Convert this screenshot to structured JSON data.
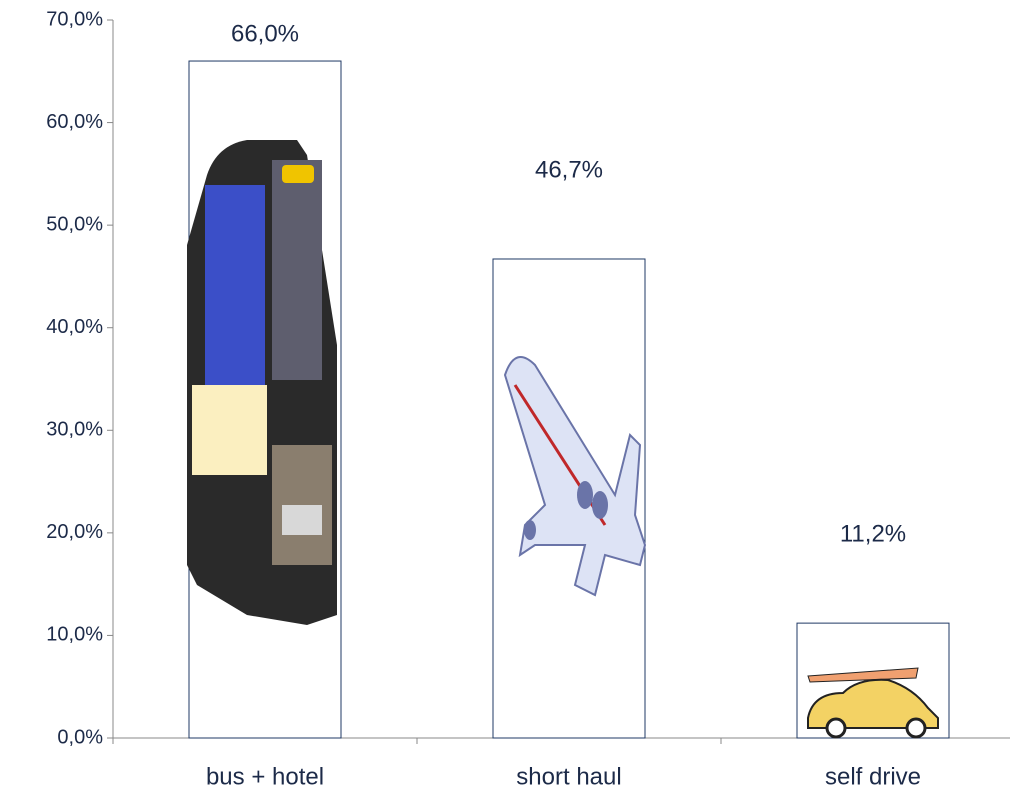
{
  "chart_data": {
    "type": "bar",
    "categories": [
      "bus + hotel",
      "short haul",
      "self drive"
    ],
    "values": [
      66.0,
      46.7,
      11.2
    ],
    "value_labels": [
      "66,0%",
      "46,7%",
      "11,2%"
    ],
    "ylim": [
      0,
      70
    ],
    "yticks": [
      {
        "value": 0,
        "label": "0,0%"
      },
      {
        "value": 10,
        "label": "10,0%"
      },
      {
        "value": 20,
        "label": "20,0%"
      },
      {
        "value": 30,
        "label": "30,0%"
      },
      {
        "value": 40,
        "label": "40,0%"
      },
      {
        "value": 50,
        "label": "50,0%"
      },
      {
        "value": 60,
        "label": "60,0%"
      },
      {
        "value": 70,
        "label": "70,0%"
      }
    ],
    "color": "#ffffff"
  }
}
